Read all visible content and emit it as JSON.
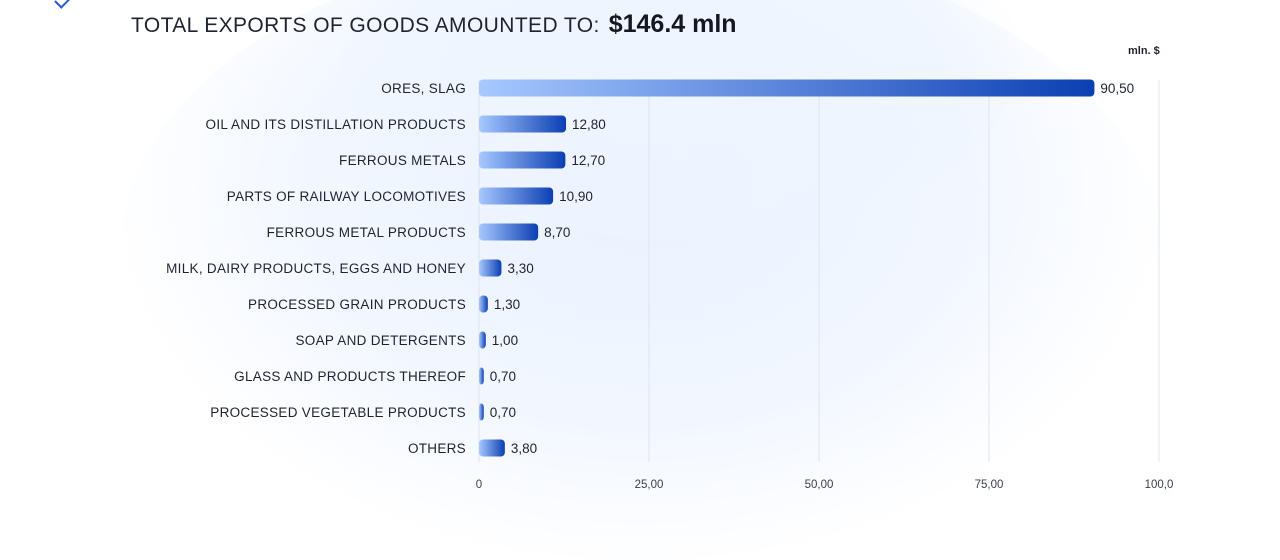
{
  "title": {
    "main": "TOTAL EXPORTS OF GOODS AMOUNTED TO:",
    "amount": "$146.4 mln"
  },
  "unit_label": "mln. $",
  "colors": {
    "bar_start": "#a7c8ff",
    "bar_end": "#0b3fb3",
    "text": "#1f2330",
    "grid": "#dfe4ec"
  },
  "chart_data": {
    "type": "bar",
    "orientation": "horizontal",
    "title": "TOTAL EXPORTS OF GOODS AMOUNTED TO: $146.4 mln",
    "xlabel": "mln. $",
    "ylabel": "",
    "xlim": [
      0,
      100
    ],
    "grid": true,
    "categories": [
      "ORES, SLAG",
      "OIL AND ITS DISTILLATION PRODUCTS",
      "FERROUS METALS",
      "PARTS OF RAILWAY LOCOMOTIVES",
      "FERROUS METAL PRODUCTS",
      "MILK, DAIRY PRODUCTS, EGGS AND HONEY",
      "PROCESSED GRAIN PRODUCTS",
      "SOAP AND DETERGENTS",
      "GLASS AND PRODUCTS THEREOF",
      "PROCESSED VEGETABLE PRODUCTS",
      "OTHERS"
    ],
    "values": [
      90.5,
      12.8,
      12.7,
      10.9,
      8.7,
      3.3,
      1.3,
      1.0,
      0.7,
      0.7,
      3.8
    ],
    "value_labels": [
      "90,50",
      "12,80",
      "12,70",
      "10,90",
      "8,70",
      "3,30",
      "1,30",
      "1,00",
      "0,70",
      "0,70",
      "3,80"
    ],
    "ticks": [
      0,
      25,
      50,
      75,
      100
    ],
    "tick_labels": [
      "0",
      "25,00",
      "50,00",
      "75,00",
      "100,0"
    ]
  }
}
